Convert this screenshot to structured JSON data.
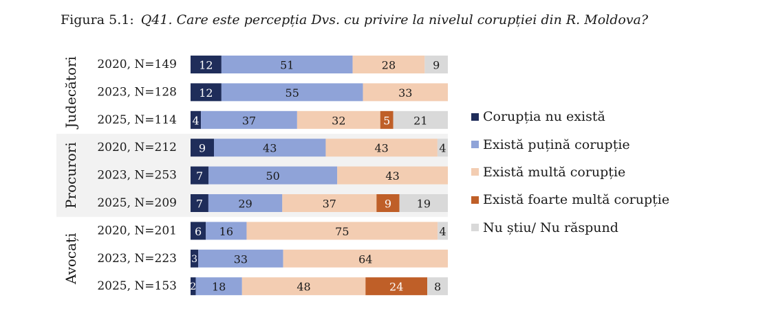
{
  "title": {
    "number": "Figura 5.1:",
    "question": "Q41. Care este percepția Dvs. cu privire la nivelul corupției din R. Moldova?"
  },
  "legend": [
    {
      "label": "Corupția nu există",
      "color": "#1f2d5a"
    },
    {
      "label": "Există puțină corupție",
      "color": "#8fa3d8"
    },
    {
      "label": "Există multă corupție",
      "color": "#f3cdb2"
    },
    {
      "label": "Există foarte multă corupție",
      "color": "#bf5f28"
    },
    {
      "label": "Nu știu/ Nu răspund",
      "color": "#d9d9d9"
    }
  ],
  "chart_data": {
    "type": "bar",
    "orientation": "horizontal",
    "stacked": true,
    "title": "Q41. Care este percepția Dvs. cu privire la nivelul corupției din R. Moldova?",
    "groups": [
      "Judecători",
      "Procurori",
      "Avocați"
    ],
    "categories": [
      "2020, N=149",
      "2023, N=128",
      "2025, N=114",
      "2020, N=212",
      "2023, N=253",
      "2025, N=209",
      "2020, N=201",
      "2023, N=223",
      "2025, N=153"
    ],
    "category_group": [
      0,
      0,
      0,
      1,
      1,
      1,
      2,
      2,
      2
    ],
    "series": [
      {
        "name": "Corupția nu există",
        "color": "#1f2d5a",
        "values": [
          12,
          12,
          4,
          9,
          7,
          7,
          6,
          3,
          2
        ]
      },
      {
        "name": "Există puțină corupție",
        "color": "#8fa3d8",
        "values": [
          51,
          55,
          37,
          43,
          50,
          29,
          16,
          33,
          18
        ]
      },
      {
        "name": "Există multă corupție",
        "color": "#f3cdb2",
        "values": [
          28,
          33,
          32,
          43,
          43,
          37,
          75,
          64,
          48
        ]
      },
      {
        "name": "Există foarte multă corupție",
        "color": "#bf5f28",
        "values": [
          null,
          null,
          5,
          null,
          null,
          9,
          null,
          null,
          24
        ]
      },
      {
        "name": "Nu știu/ Nu răspund",
        "color": "#d9d9d9",
        "values": [
          9,
          null,
          21,
          4,
          null,
          19,
          4,
          null,
          8
        ]
      }
    ],
    "xlim": [
      0,
      100
    ],
    "legend_position": "right"
  }
}
